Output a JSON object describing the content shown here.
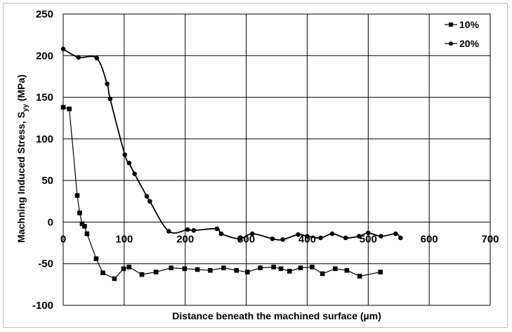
{
  "chart_data": {
    "type": "line",
    "xlabel": "Distance beneath the machined surface (µm)",
    "ylabel": "Machning Induced Stress, S",
    "ylabel_subscript": "yy",
    "ylabel_unit": " (MPa)",
    "xlim": [
      0,
      700
    ],
    "ylim": [
      -100,
      250
    ],
    "x_ticks": [
      0,
      100,
      200,
      300,
      400,
      500,
      600,
      700
    ],
    "y_ticks": [
      250,
      200,
      150,
      100,
      50,
      0,
      -50,
      -100
    ],
    "x_tick_labels": [
      "0",
      "100",
      "200",
      "300",
      "400",
      "500",
      "600",
      "700"
    ],
    "y_tick_labels": [
      "250",
      "200",
      "150",
      "100",
      "50",
      "0",
      "-50",
      "-100"
    ],
    "grid": true,
    "legend_position": "top-right",
    "series": [
      {
        "name": "10%",
        "marker": "square",
        "x": [
          0,
          10,
          23,
          27,
          31,
          35,
          39,
          54,
          65,
          84,
          99,
          108,
          129,
          152,
          177,
          199,
          220,
          241,
          263,
          284,
          302,
          323,
          345,
          357,
          371,
          389,
          408,
          425,
          446,
          465,
          486,
          520
        ],
        "y": [
          138,
          136,
          32,
          11,
          -2,
          -5,
          -14,
          -44,
          -61,
          -68,
          -56,
          -54,
          -63,
          -60,
          -55,
          -56,
          -57,
          -58,
          -55,
          -58,
          -60,
          -55,
          -54,
          -56,
          -59,
          -55,
          -54,
          -62,
          -56,
          -58,
          -65,
          -60
        ]
      },
      {
        "name": "20%",
        "marker": "circle",
        "x": [
          0,
          25,
          55,
          72,
          77,
          101,
          108,
          117,
          137,
          142,
          173,
          204,
          214,
          252,
          259,
          289,
          310,
          343,
          360,
          385,
          400,
          422,
          441,
          463,
          485,
          500,
          521,
          545,
          553
        ],
        "y": [
          208,
          198,
          197,
          166,
          148,
          81,
          71,
          58,
          31,
          25,
          -11,
          -9,
          -10,
          -8,
          -14,
          -20,
          -14,
          -20,
          -21,
          -15,
          -17,
          -19,
          -14,
          -19,
          -17,
          -13,
          -17,
          -14,
          -19
        ]
      }
    ]
  }
}
